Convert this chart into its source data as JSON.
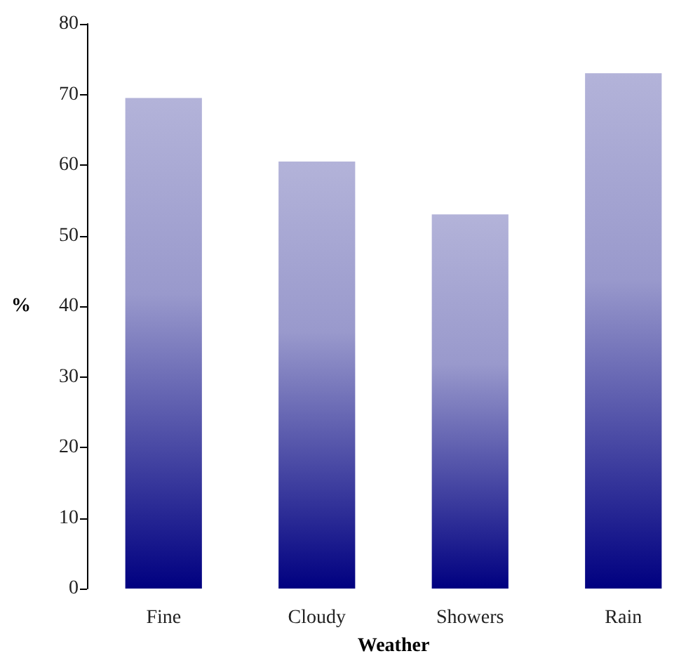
{
  "chart_data": {
    "type": "bar",
    "xlabel": "Weather",
    "ylabel": "%",
    "categories": [
      "Fine",
      "Cloudy",
      "Showers",
      "Rain"
    ],
    "values": [
      69.5,
      60.5,
      53,
      73
    ],
    "color": "#000080",
    "ylim": [
      0,
      80
    ],
    "yticks": [
      0,
      10,
      20,
      30,
      40,
      50,
      60,
      70,
      80
    ]
  }
}
